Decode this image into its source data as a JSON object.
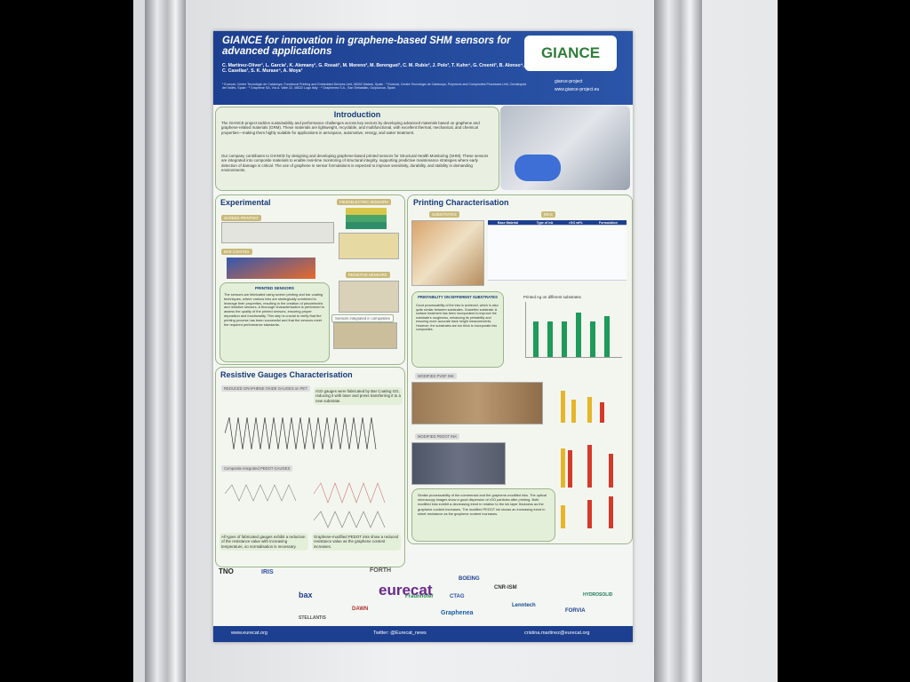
{
  "header": {
    "title": "GIANCE for innovation in graphene-based SHM sensors for advanced applications",
    "authors": "C. Martinez-Oliver¹, L. Garcia¹, K. Alemany¹, G. Rosati¹, M. Moreno², M. Berenguel¹, C. M. Rubio², J. Polo³, T. Kuhn⁴, G. Creenti³, B. Alonso⁴, C. Casellas¹, S. K. Murase⁴, A. Moya¹",
    "affiliations": "¹ Eurecat, Centre Tecnològic de Catalunya, Functional Printing and Embedded Devices Unit, 08302 Mataró, Spain · ² Eurecat, Centre Tecnològic de Catalunya, Polymeric and Composites Processes Unit, Cerdanyola del Vallès, Spain · ³ Graphene SA, Vía A. Valle 22, 48022 Lugo Italy · ⁴ Graphenea S.A., San Sebastián, Guipúzcoa, Spain",
    "logo": "GIANCE",
    "linkedin": "giance-project",
    "website": "www.giance-project.eu"
  },
  "introduction": {
    "title": "Introduction",
    "p1": "The GIANCE project tackles sustainability and performance challenges across key sectors by developing advanced materials based on graphene and graphene-related materials (GRM). These materials are lightweight, recyclable, and multifunctional, with excellent thermal, mechanical, and chemical properties—making them highly suitable for applications in aerospace, automotive, energy, and water treatment.",
    "p2": "Our company contributes to GIANCE by designing and developing graphene-based printed sensors for Structural Health Monitoring (SHM). These sensors are integrated into composite materials to enable real-time monitoring of structural integrity, supporting predictive maintenance strategies where early detection of damage is critical. The use of graphene in sensor formulations is expected to improve sensitivity, durability, and stability in demanding environments."
  },
  "experimental": {
    "title": "Experimental",
    "screen_printing": "SCREEN PRINTING",
    "bar_coating": "BAR COATING",
    "piezo": "PIEZOELECTRIC SENSORS",
    "resistive": "RESISTIVE SENSORS",
    "integrated": "Sensors integrated in composites",
    "printed_sensors": "PRINTED SENSORS",
    "text": "The sensors are fabricated using screen printing and bar coating techniques, where various inks are strategically combined to leverage their properties, resulting in the creation of piezoelectric and resistive sensors. A thorough characterisation is performed to assess the quality of the printed sensors, ensuring proper deposition and functionality. This step is crucial to verify that the printing process has been successful and that the sensors meet the required performance standards."
  },
  "printing": {
    "title": "Printing Characterisation",
    "substrates": "SUBSTRATES",
    "inks": "INKS",
    "table_header": [
      "Base Material",
      "Type of ink",
      "rGO wt%",
      "Formulation"
    ],
    "box_title": "PRINTABILITY ON DIFFERENT SUBSTRATES",
    "box_text": "Good processability of the inks is achieved, which is also quite similar between substrates. Graneflex substrate: A surface treatment has been incorporated to improve the substrate's roughness, enhancing its printability and ensuring more accurate track height measurements. However, the substrates are too thick to incorporate into composites.",
    "chart_title": "Printed Ag on different substrates",
    "pvdf_ink": "MODIFIED PVDF INK",
    "pedot_ink": "MODIFIED PEDOT INK",
    "conclusions": "Similar processability of the commercial and the graphene-modified inks. The optical microscopy images show a good dispersion of rGO particles after printing. Both modified inks exhibit a decreasing trend in relation to the ink layer thickness as the graphene content increases. The modified PEDOT ink shows an increasing trend in sheet resistance as the graphene content increases."
  },
  "resistive": {
    "title": "Resistive Gauges Characterisation",
    "sub1": "REDUCED GRAPHENE OXIDE GAUGES on PET",
    "sub2": "Composite integrated PEDOT GAUGES",
    "note": "rGO gauges were fabricated by Bar Coating GO, reducing it with laser and press transferring it to a new substrate.",
    "c1": "All types of fabricated gauges exhibit a reduction of the resistance value with increasing temperature, so normalisation is necessary.",
    "c2": "Graphene-modified PEDOT inks show a reduced resistance value as the graphene content increases."
  },
  "logos": [
    "TNO",
    "IRIS",
    "FORTH",
    "BOEING",
    "Fraunhofer",
    "CTAG",
    "CNR-ISM",
    "eurecat",
    "bax",
    "Graphenea",
    "Lenntech",
    "FORVIA",
    "HYDROSOLID",
    "STELLANTIS",
    "DAWN"
  ],
  "footer": {
    "web": "www.eurecat.org",
    "twitter": "Twitter: @Eurecat_news",
    "email": "cristina.martinez@eurecat.org"
  }
}
